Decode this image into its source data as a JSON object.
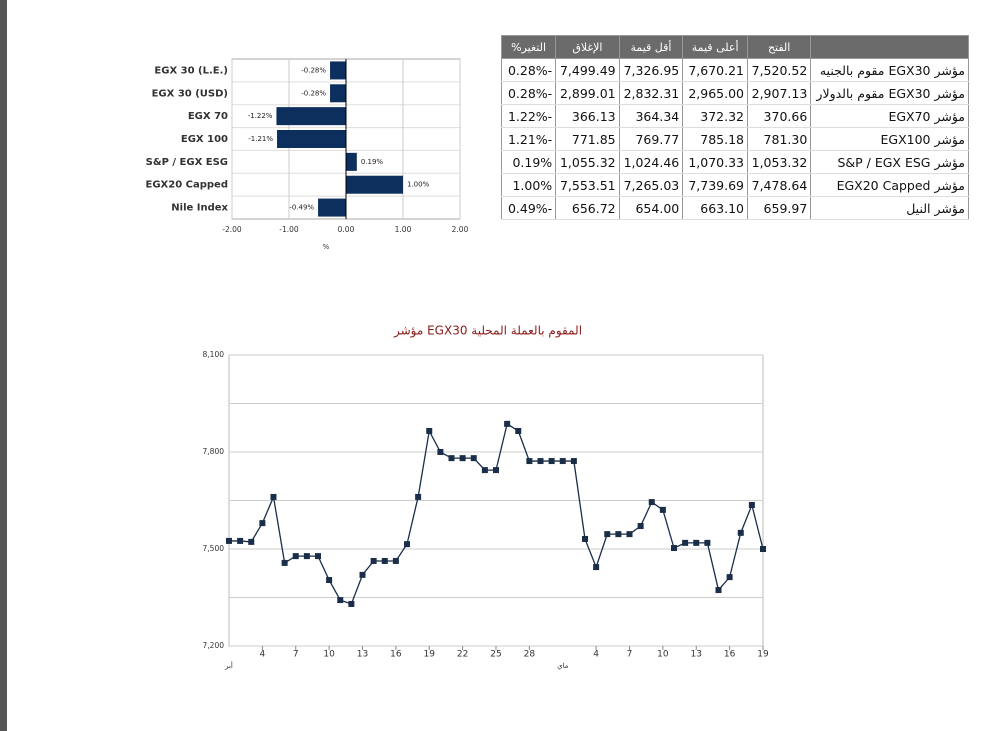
{
  "chart_data": [
    {
      "type": "barh",
      "categories": [
        "EGX 30 (L.E.)",
        "EGX 30 (USD)",
        "EGX 70",
        "EGX 100",
        "S&P / EGX ESG",
        "EGX20 Capped",
        "Nile Index"
      ],
      "values": [
        -0.28,
        -0.28,
        -1.22,
        -1.21,
        0.19,
        1.0,
        -0.49
      ],
      "value_labels": [
        "-0.28%",
        "-0.28%",
        "-1.22%",
        "-1.21%",
        "0.19%",
        "1.00%",
        "-0.49%"
      ],
      "color": "#0d2f5e",
      "xlabel": "%",
      "xlim": [
        -2,
        2
      ],
      "xticks": [
        {
          "value": -2,
          "label": "-2.00"
        },
        {
          "value": -1,
          "label": "-1.00"
        },
        {
          "value": 0,
          "label": "0.00"
        },
        {
          "value": 1,
          "label": "1.00"
        },
        {
          "value": 2,
          "label": "2.00"
        }
      ],
      "grid": true
    },
    {
      "type": "line",
      "title": "مؤشر EGX30 المقوم بالعملة المحلية",
      "categories": [
        null,
        null,
        null,
        "4",
        null,
        null,
        "7",
        null,
        null,
        "10",
        null,
        null,
        "13",
        null,
        null,
        "16",
        null,
        null,
        "19",
        null,
        null,
        "22",
        null,
        null,
        "25",
        null,
        null,
        "28",
        null,
        null,
        null,
        null,
        null,
        "4",
        null,
        null,
        "7",
        null,
        null,
        "10",
        null,
        null,
        "13",
        null,
        null,
        "16",
        null,
        null,
        "19"
      ],
      "months": [
        {
          "label": "أبر",
          "category": 0
        },
        {
          "label": "ماي",
          "category": 30
        }
      ],
      "series": [
        {
          "name": "EGX30",
          "color": "#1a2e4a",
          "values": [
            7525,
            7525,
            7522,
            7580,
            7661,
            7457,
            7478,
            7478,
            7478,
            7404,
            7342,
            7330,
            7420,
            7463,
            7463,
            7463,
            7515,
            7661,
            7865,
            7800,
            7781,
            7781,
            7781,
            7744,
            7744,
            7887,
            7865,
            7772,
            7772,
            7772,
            7772,
            7772,
            7531,
            7444,
            7546,
            7546,
            7546,
            7571,
            7645,
            7621,
            7503,
            7519,
            7519,
            7519,
            7373,
            7413,
            7550,
            7636,
            7500
          ]
        }
      ],
      "ylim": [
        7200,
        8100
      ],
      "yticks": [
        {
          "value": 7200,
          "label": "7,200"
        },
        {
          "value": 7500,
          "label": "7,500"
        },
        {
          "value": 7800,
          "label": "7,800"
        },
        {
          "value": 8100,
          "label": "8,100"
        }
      ],
      "minor_yticks": [
        7350,
        7650,
        7950
      ],
      "grid": true
    }
  ],
  "table": {
    "header": [
      "",
      "الفتح",
      "أعلى قيمة",
      "أقل قيمة",
      "الإغلاق",
      "التغير%"
    ],
    "rows": [
      [
        "مؤشر EGX30 مقوم بالجنيه",
        "7,520.52",
        "7,670.21",
        "7,326.95",
        "7,499.49",
        "0.28%-"
      ],
      [
        "مؤشر EGX30 مقوم بالدولار",
        "2,907.13",
        "2,965.00",
        "2,832.31",
        "2,899.01",
        "0.28%-"
      ],
      [
        "مؤشر EGX70",
        "370.66",
        "372.32",
        "364.34",
        "366.13",
        "1.22%-"
      ],
      [
        "مؤشر EGX100",
        "781.30",
        "785.18",
        "769.77",
        "771.85",
        "1.21%-"
      ],
      [
        "مؤشر S&P / EGX ESG",
        "1,053.32",
        "1,070.33",
        "1,024.46",
        "1,055.32",
        "0.19%"
      ],
      [
        "مؤشر EGX20 Capped",
        "7,478.64",
        "7,739.69",
        "7,265.03",
        "7,553.51",
        "1.00%"
      ],
      [
        "مؤشر النيل",
        "659.97",
        "663.10",
        "654.00",
        "656.72",
        "0.49%-"
      ]
    ]
  }
}
